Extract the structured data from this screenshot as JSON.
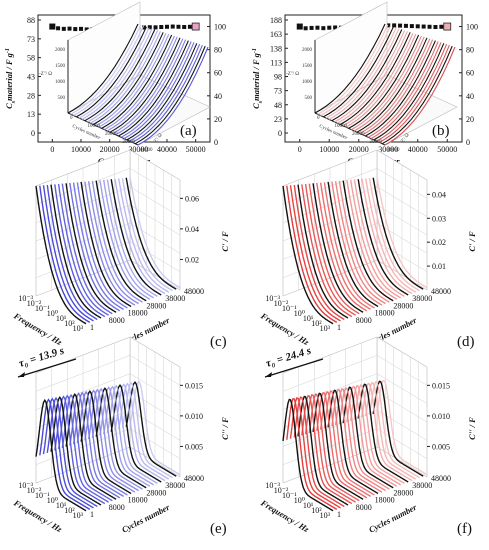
{
  "chart_data": [
    {
      "type": "scatter",
      "panel": "(a)",
      "xlabel": "Cycles number",
      "ylabel": "C",
      "ylabel_sub": "s",
      "ylabel_rest": "material / F g",
      "ylabel_sup": "-1",
      "yticks": [
        "0",
        "13",
        "28",
        "43",
        "58",
        "73",
        "88"
      ],
      "xticks": [
        "0",
        "10000",
        "20000",
        "30000",
        "40000",
        "50000"
      ],
      "y2ticks": [
        "0",
        "20",
        "40",
        "60",
        "80",
        "100"
      ],
      "xlim": [
        -5000,
        55000
      ],
      "y2lim": [
        0,
        110
      ],
      "highlight_colors": [
        "#1a1ac8",
        "#e8a0c8"
      ],
      "x": [
        0,
        2000,
        4000,
        6000,
        8000,
        10000,
        12000,
        14000,
        16000,
        18000,
        20000,
        22000,
        24000,
        26000,
        28000,
        30000,
        32000,
        34000,
        36000,
        38000,
        40000,
        42000,
        44000,
        46000,
        48000,
        50000
      ],
      "y": [
        100,
        98.5,
        98,
        98.2,
        97.8,
        98,
        97.5,
        97.8,
        98,
        97.6,
        97.9,
        98,
        98.2,
        98.4,
        98.6,
        99,
        99.2,
        99.4,
        99.3,
        99.6,
        99.8,
        100,
        99.8,
        99.6,
        99.8,
        100
      ],
      "inset": {
        "zlabel": "-Z''/ Ω",
        "xlabel": "Cycles number",
        "ylabel": "Z'/ Ω",
        "zticks": [
          "500",
          "1000",
          "1500",
          "2000"
        ],
        "cticks": [
          "0",
          "10000",
          "20000",
          "30000",
          "40000"
        ],
        "color": "#3a3ad0"
      }
    },
    {
      "type": "scatter",
      "panel": "(b)",
      "xlabel": "Cycles number",
      "ylabel": "C",
      "ylabel_sub": "s",
      "ylabel_rest": "material / F g",
      "ylabel_sup": "-1",
      "yticks": [
        "0",
        "23",
        "48",
        "73",
        "98",
        "113",
        "138",
        "163",
        "188"
      ],
      "xticks": [
        "0",
        "10000",
        "20000",
        "30000",
        "40000",
        "50000"
      ],
      "y2ticks": [
        "0",
        "20",
        "40",
        "60",
        "80",
        "100"
      ],
      "xlim": [
        -5000,
        55000
      ],
      "y2lim": [
        0,
        110
      ],
      "highlight_colors": [
        "#a02020",
        "#e8b0b0"
      ],
      "x": [
        0,
        2000,
        4000,
        6000,
        8000,
        10000,
        12000,
        14000,
        16000,
        18000,
        20000,
        22000,
        24000,
        26000,
        28000,
        30000,
        32000,
        34000,
        36000,
        38000,
        40000,
        42000,
        44000,
        46000,
        48000,
        50000
      ],
      "y": [
        100,
        98.5,
        98.8,
        99,
        98.6,
        99,
        99.2,
        99,
        99.4,
        99.5,
        99.6,
        99.8,
        100,
        100.4,
        100.6,
        101,
        101,
        100.8,
        100.6,
        100.4,
        100.2,
        100,
        99.8,
        99.6,
        99.8,
        100
      ],
      "inset": {
        "zlabel": "-Z''/ Ω",
        "xlabel": "Cycles number",
        "ylabel": "Z'/ Ω",
        "zticks": [
          "500",
          "1000",
          "1500",
          "2000"
        ],
        "cticks": [
          "0",
          "10000",
          "20000",
          "30000",
          "40000"
        ],
        "color": "#d03030"
      }
    },
    {
      "type": "surface",
      "panel": "(c)",
      "zlabel": "C' / F",
      "xlabel": "Frequency / Hz",
      "ylabel": "Cycles number",
      "zticks": [
        "0.02",
        "0.04",
        "0.06"
      ],
      "cticks": [
        "1",
        "8000",
        "18000",
        "28000",
        "38000",
        "48000"
      ],
      "fticks": [
        "10⁻³",
        "10⁻²",
        "10⁻¹",
        "10⁰",
        "10¹",
        "10²",
        "10³"
      ],
      "color": "#2d2dd0"
    },
    {
      "type": "surface",
      "panel": "(d)",
      "zlabel": "C' / F",
      "xlabel": "Frequency / Hz",
      "ylabel": "Cycles number",
      "zticks": [
        "0.01",
        "0.02",
        "0.03",
        "0.04"
      ],
      "cticks": [
        "1",
        "8000",
        "18000",
        "28000",
        "38000",
        "48000"
      ],
      "fticks": [
        "10⁻³",
        "10⁻²",
        "10⁻¹",
        "10⁰",
        "10¹",
        "10²",
        "10³"
      ],
      "color": "#e02020"
    },
    {
      "type": "surface",
      "panel": "(e)",
      "zlabel": "C'' / F",
      "xlabel": "Frequency / Hz",
      "ylabel": "Cycles number",
      "zticks": [
        "0.005",
        "0.010",
        "0.015"
      ],
      "cticks": [
        "1",
        "8000",
        "18000",
        "28000",
        "38000",
        "48000"
      ],
      "fticks": [
        "10⁻³",
        "10⁻²",
        "10⁻¹",
        "10⁰",
        "10¹",
        "10²",
        "10³"
      ],
      "annotation": "τ₀ = 13.9 s",
      "color": "#2d2dd0"
    },
    {
      "type": "surface",
      "panel": "(f)",
      "zlabel": "C'' / F",
      "xlabel": "Frequency / Hz",
      "ylabel": "Cycles number",
      "zticks": [
        "0.005",
        "0.010",
        "0.015"
      ],
      "cticks": [
        "1",
        "8000",
        "18000",
        "28000",
        "38000",
        "48000"
      ],
      "fticks": [
        "10⁻³",
        "10⁻²",
        "10⁻¹",
        "10⁰",
        "10¹",
        "10²",
        "10³"
      ],
      "annotation": "τ₀ = 24.4 s",
      "color": "#e02020"
    }
  ]
}
